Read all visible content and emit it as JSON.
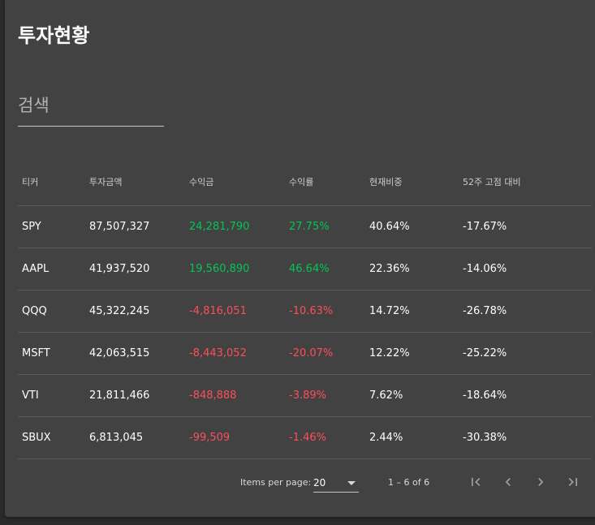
{
  "page": {
    "title": "투자현황"
  },
  "search": {
    "placeholder": "검색",
    "value": ""
  },
  "table": {
    "headers": [
      "티커",
      "투자금액",
      "수익금",
      "수익률",
      "현재비중",
      "52주 고점 대비"
    ],
    "rows": [
      {
        "ticker": "SPY",
        "amount": "87,507,327",
        "profit": "24,281,790",
        "rate": "27.75%",
        "weight": "40.64%",
        "high52": "-17.67%",
        "trend": "pos"
      },
      {
        "ticker": "AAPL",
        "amount": "41,937,520",
        "profit": "19,560,890",
        "rate": "46.64%",
        "weight": "22.36%",
        "high52": "-14.06%",
        "trend": "pos"
      },
      {
        "ticker": "QQQ",
        "amount": "45,322,245",
        "profit": "-4,816,051",
        "rate": "-10.63%",
        "weight": "14.72%",
        "high52": "-26.78%",
        "trend": "neg"
      },
      {
        "ticker": "MSFT",
        "amount": "42,063,515",
        "profit": "-8,443,052",
        "rate": "-20.07%",
        "weight": "12.22%",
        "high52": "-25.22%",
        "trend": "neg"
      },
      {
        "ticker": "VTI",
        "amount": "21,811,466",
        "profit": "-848,888",
        "rate": "-3.89%",
        "weight": "7.62%",
        "high52": "-18.64%",
        "trend": "neg"
      },
      {
        "ticker": "SBUX",
        "amount": "6,813,045",
        "profit": "-99,509",
        "rate": "-1.46%",
        "weight": "2.44%",
        "high52": "-30.38%",
        "trend": "neg"
      }
    ]
  },
  "paginator": {
    "items_per_page_label": "Items per page:",
    "page_size": "20",
    "range_label": "1 – 6 of 6",
    "buttons": [
      "first-page-icon",
      "previous-page-icon",
      "next-page-icon",
      "last-page-icon"
    ]
  },
  "colors": {
    "background": "#2b2b2b",
    "card": "#424242",
    "positive": "#00c853",
    "negative": "#ff4d5a"
  }
}
